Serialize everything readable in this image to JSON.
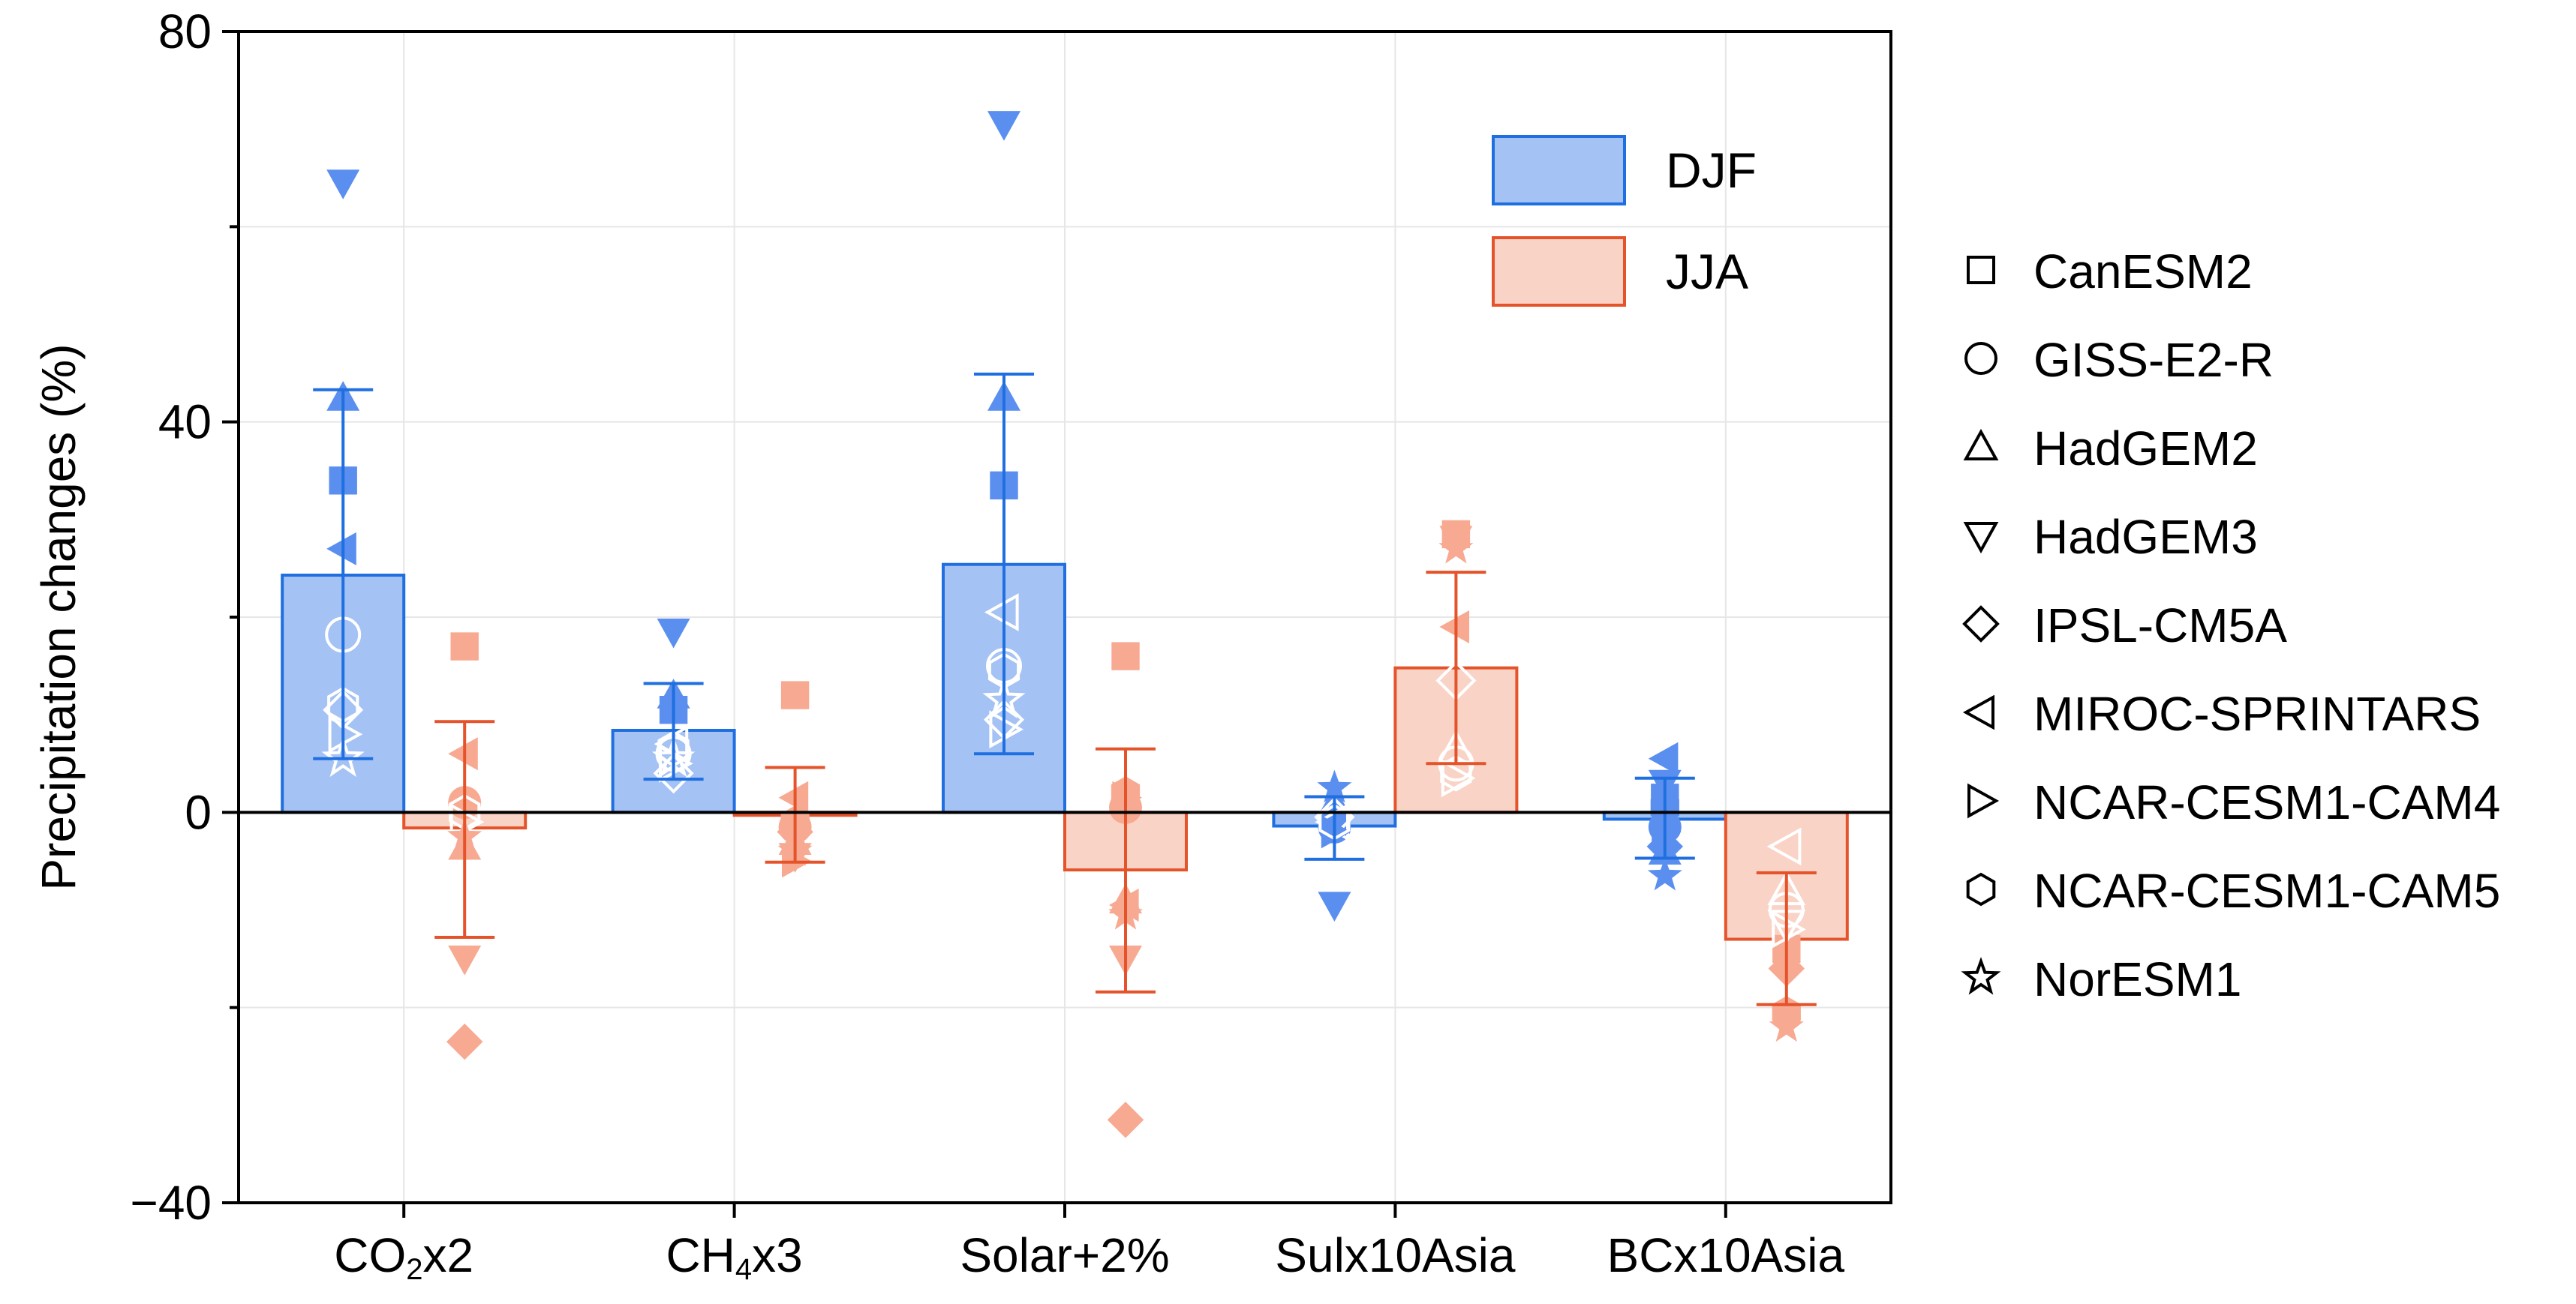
{
  "chart_data": {
    "type": "bar",
    "title": "",
    "xlabel": "",
    "ylabel": "Precipitation changes (%)",
    "ylim": [
      -40,
      80
    ],
    "yticks": [
      -40,
      0,
      40,
      80
    ],
    "grid": true,
    "legend_position": "top-right",
    "categories": [
      {
        "base": "CO",
        "sub": "2",
        "rest": "x2"
      },
      {
        "base": "CH",
        "sub": "4",
        "rest": "x3"
      },
      {
        "base": "Solar+2%",
        "sub": "",
        "rest": ""
      },
      {
        "base": "Sulx10Asia",
        "sub": "",
        "rest": ""
      },
      {
        "base": "BCx10Asia",
        "sub": "",
        "rest": ""
      }
    ],
    "series": [
      {
        "name": "DJF",
        "fill": "#a4c2f4",
        "stroke": "#1f6fe0",
        "values": [
          24.3,
          8.4,
          25.4,
          -1.4,
          -0.7
        ],
        "error_low": [
          5.5,
          3.4,
          6.0,
          -4.8,
          -4.7
        ],
        "error_high": [
          43.3,
          13.2,
          44.9,
          1.6,
          3.5
        ],
        "points": [
          {
            "model": "CanESM2",
            "value": 34.0
          },
          {
            "model": "GISS-E2-R",
            "value": 18.2
          },
          {
            "model": "HadGEM2",
            "value": 42.5
          },
          {
            "model": "HadGEM3",
            "value": 64.5
          },
          {
            "model": "IPSL-CM5A",
            "value": 10.5
          },
          {
            "model": "MIROC-SPRINTARS",
            "value": 27.0
          },
          {
            "model": "NCAR-CESM1-CAM4",
            "value": 8.0
          },
          {
            "model": "NCAR-CESM1-CAM5",
            "value": 11.0
          },
          {
            "model": "NorESM1",
            "value": 5.5
          },
          {
            "model": "CanESM2",
            "value": 10.5
          },
          {
            "model": "GISS-E2-R",
            "value": 6.0
          },
          {
            "model": "HadGEM2",
            "value": 12.0
          },
          {
            "model": "HadGEM3",
            "value": 18.5
          },
          {
            "model": "IPSL-CM5A",
            "value": 4.0
          },
          {
            "model": "MIROC-SPRINTARS",
            "value": 7.0
          },
          {
            "model": "NCAR-CESM1-CAM4",
            "value": 5.0
          },
          {
            "model": "NCAR-CESM1-CAM5",
            "value": 6.5
          },
          {
            "model": "NorESM1",
            "value": 5.5
          },
          {
            "model": "CanESM2",
            "value": 33.5
          },
          {
            "model": "GISS-E2-R",
            "value": 15.0
          },
          {
            "model": "HadGEM2",
            "value": 42.5
          },
          {
            "model": "HadGEM3",
            "value": 70.5
          },
          {
            "model": "IPSL-CM5A",
            "value": 9.5
          },
          {
            "model": "MIROC-SPRINTARS",
            "value": 20.5
          },
          {
            "model": "NCAR-CESM1-CAM4",
            "value": 8.5
          },
          {
            "model": "NCAR-CESM1-CAM5",
            "value": 14.5
          },
          {
            "model": "NorESM1",
            "value": 11.5
          },
          {
            "model": "CanESM2",
            "value": -0.5
          },
          {
            "model": "GISS-E2-R",
            "value": -1.5
          },
          {
            "model": "HadGEM2",
            "value": 1.0
          },
          {
            "model": "HadGEM3",
            "value": -9.5
          },
          {
            "model": "IPSL-CM5A",
            "value": -0.5
          },
          {
            "model": "MIROC-SPRINTARS",
            "value": -1.0
          },
          {
            "model": "NCAR-CESM1-CAM4",
            "value": -2.0
          },
          {
            "model": "NCAR-CESM1-CAM5",
            "value": -1.0
          },
          {
            "model": "NorESM1",
            "value": 2.5
          },
          {
            "model": "CanESM2",
            "value": 1.5
          },
          {
            "model": "GISS-E2-R",
            "value": -1.5
          },
          {
            "model": "HadGEM2",
            "value": -4.0
          },
          {
            "model": "HadGEM3",
            "value": 3.0
          },
          {
            "model": "IPSL-CM5A",
            "value": -3.5
          },
          {
            "model": "MIROC-SPRINTARS",
            "value": 5.5
          },
          {
            "model": "NCAR-CESM1-CAM4",
            "value": -2.0
          },
          {
            "model": "NCAR-CESM1-CAM5",
            "value": 0.5
          },
          {
            "model": "NorESM1",
            "value": -6.5
          }
        ]
      },
      {
        "name": "JJA",
        "fill": "#f9d3c6",
        "stroke": "#e5532a",
        "values": [
          -1.6,
          -0.3,
          -5.9,
          14.8,
          -13.0
        ],
        "error_low": [
          -12.8,
          -5.1,
          -18.4,
          5.0,
          -19.7
        ],
        "error_high": [
          9.3,
          4.6,
          6.5,
          24.6,
          -6.2
        ],
        "points": [
          {
            "model": "CanESM2",
            "value": 17.0
          },
          {
            "model": "GISS-E2-R",
            "value": 1.0
          },
          {
            "model": "HadGEM2",
            "value": -3.5
          },
          {
            "model": "HadGEM3",
            "value": -15.0
          },
          {
            "model": "IPSL-CM5A",
            "value": -23.5
          },
          {
            "model": "MIROC-SPRINTARS",
            "value": 6.0
          },
          {
            "model": "NCAR-CESM1-CAM4",
            "value": -1.0
          },
          {
            "model": "NCAR-CESM1-CAM5",
            "value": 0.0
          },
          {
            "model": "NorESM1",
            "value": -2.5
          },
          {
            "model": "CanESM2",
            "value": 12.0
          },
          {
            "model": "GISS-E2-R",
            "value": -1.5
          },
          {
            "model": "HadGEM2",
            "value": -3.0
          },
          {
            "model": "HadGEM3",
            "value": -4.5
          },
          {
            "model": "IPSL-CM5A",
            "value": -2.0
          },
          {
            "model": "MIROC-SPRINTARS",
            "value": 1.5
          },
          {
            "model": "NCAR-CESM1-CAM4",
            "value": -5.0
          },
          {
            "model": "NCAR-CESM1-CAM5",
            "value": -1.0
          },
          {
            "model": "NorESM1",
            "value": -4.0
          },
          {
            "model": "CanESM2",
            "value": 16.0
          },
          {
            "model": "GISS-E2-R",
            "value": 0.5
          },
          {
            "model": "HadGEM2",
            "value": -9.0
          },
          {
            "model": "HadGEM3",
            "value": -15.0
          },
          {
            "model": "IPSL-CM5A",
            "value": -31.5
          },
          {
            "model": "MIROC-SPRINTARS",
            "value": -9.5
          },
          {
            "model": "NCAR-CESM1-CAM4",
            "value": 1.5
          },
          {
            "model": "NCAR-CESM1-CAM5",
            "value": 2.0
          },
          {
            "model": "NorESM1",
            "value": -10.5
          },
          {
            "model": "CanESM2",
            "value": 28.5
          },
          {
            "model": "GISS-E2-R",
            "value": 5.0
          },
          {
            "model": "HadGEM2",
            "value": 6.5
          },
          {
            "model": "HadGEM3",
            "value": 28.0
          },
          {
            "model": "IPSL-CM5A",
            "value": 13.5
          },
          {
            "model": "MIROC-SPRINTARS",
            "value": 19.0
          },
          {
            "model": "NCAR-CESM1-CAM4",
            "value": 3.5
          },
          {
            "model": "NCAR-CESM1-CAM5",
            "value": 4.0
          },
          {
            "model": "NorESM1",
            "value": 27.0
          },
          {
            "model": "CanESM2",
            "value": -14.0
          },
          {
            "model": "GISS-E2-R",
            "value": -10.0
          },
          {
            "model": "HadGEM2",
            "value": -8.0
          },
          {
            "model": "HadGEM3",
            "value": -11.5
          },
          {
            "model": "IPSL-CM5A",
            "value": -16.0
          },
          {
            "model": "MIROC-SPRINTARS",
            "value": -3.5
          },
          {
            "model": "NCAR-CESM1-CAM4",
            "value": -12.0
          },
          {
            "model": "NCAR-CESM1-CAM5",
            "value": -20.5
          },
          {
            "model": "NorESM1",
            "value": -22.0
          }
        ]
      }
    ],
    "models": [
      {
        "name": "CanESM2",
        "symbol": "square"
      },
      {
        "name": "GISS-E2-R",
        "symbol": "circle"
      },
      {
        "name": "HadGEM2",
        "symbol": "triangle-up"
      },
      {
        "name": "HadGEM3",
        "symbol": "triangle-down"
      },
      {
        "name": "IPSL-CM5A",
        "symbol": "diamond"
      },
      {
        "name": "MIROC-SPRINTARS",
        "symbol": "triangle-left"
      },
      {
        "name": "NCAR-CESM1-CAM4",
        "symbol": "triangle-right"
      },
      {
        "name": "NCAR-CESM1-CAM5",
        "symbol": "hexagon"
      },
      {
        "name": "NorESM1",
        "symbol": "star"
      }
    ],
    "colors": {
      "djf_point": "#5a8ff0",
      "jja_point": "#f7a991",
      "grid": "#e6e6e6",
      "axis": "#000000"
    }
  }
}
